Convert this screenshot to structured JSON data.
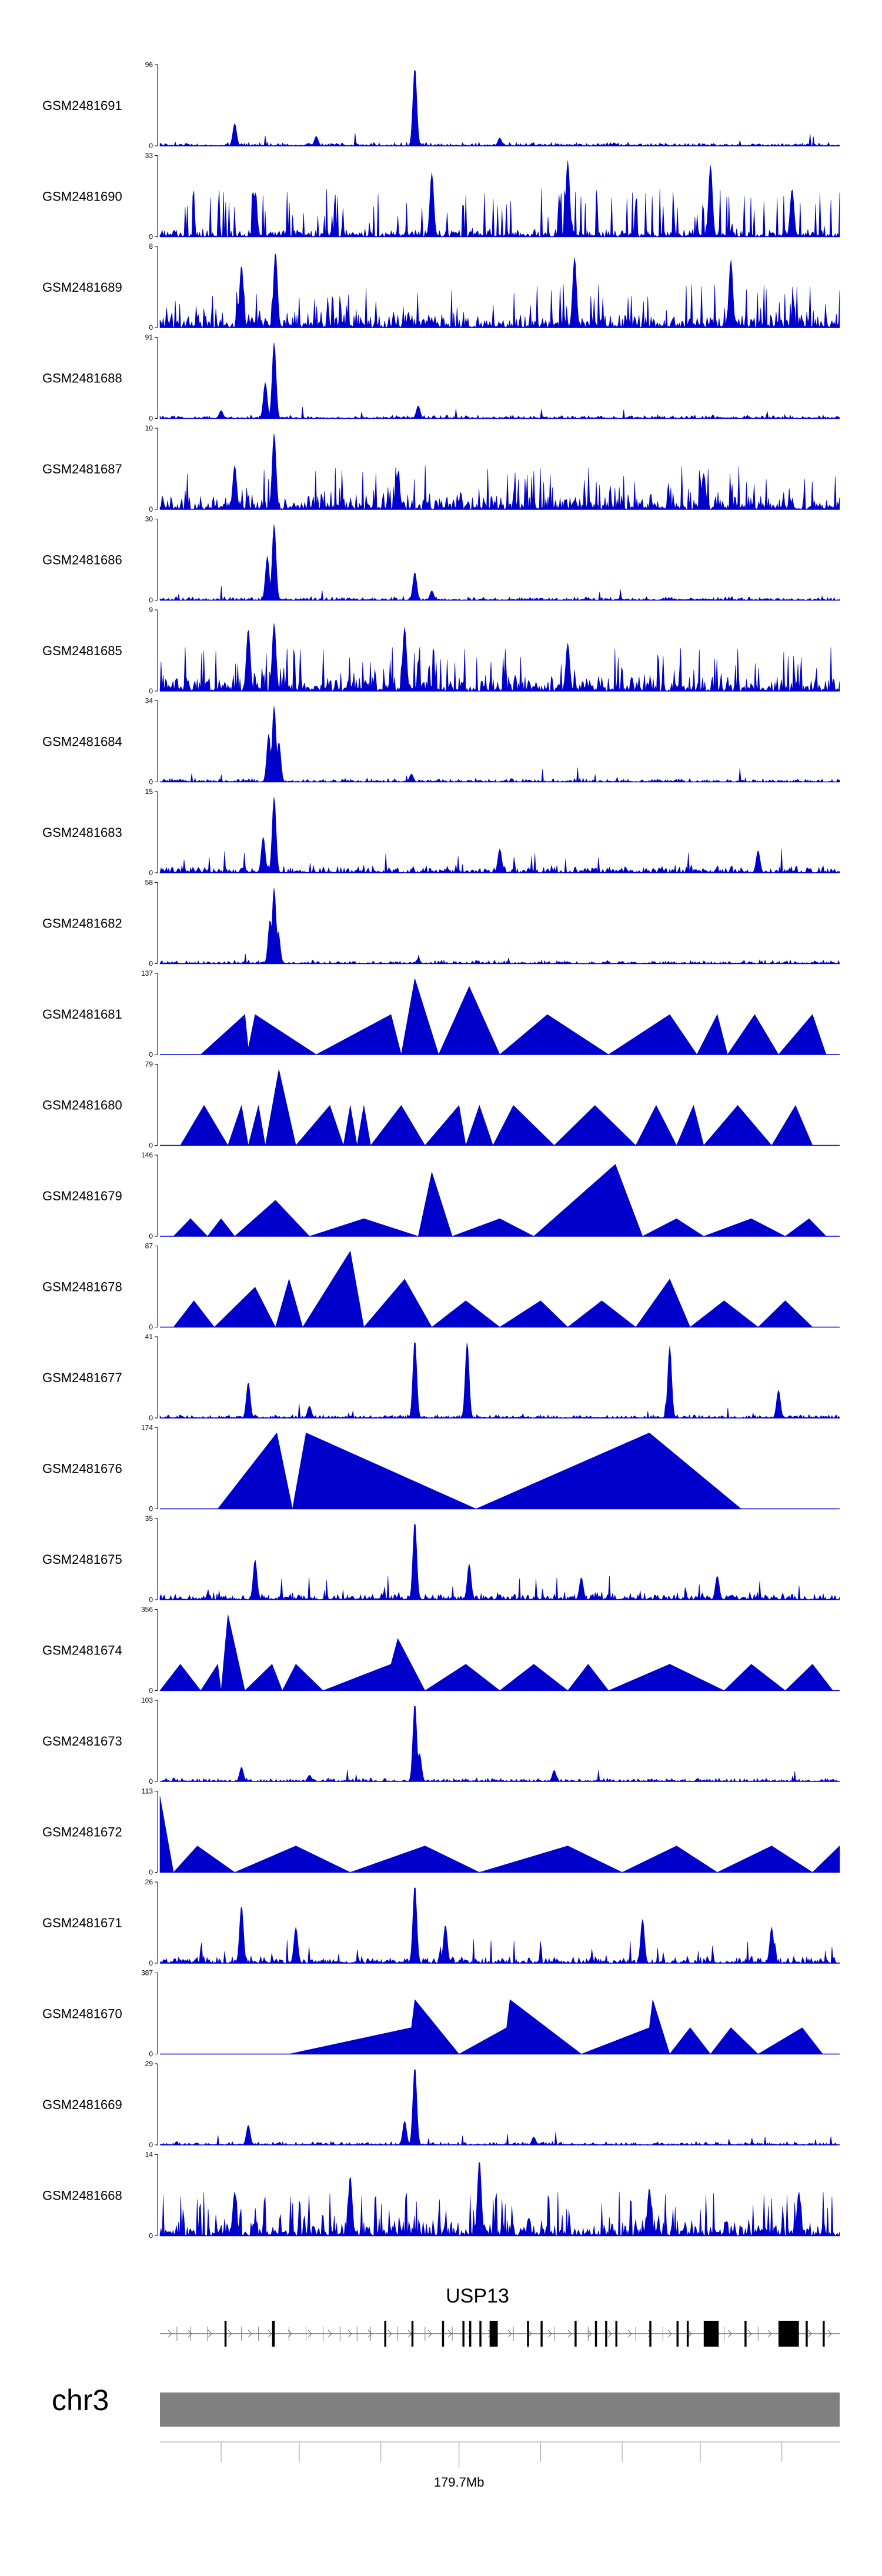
{
  "chart_data": {
    "type": "area",
    "title": "",
    "series_color": "#0000cc",
    "tracks": [
      {
        "name": "GSM2481691",
        "ymax": "96",
        "ymin": "0",
        "style": "sparse",
        "peaks": [
          [
            0.375,
            0.98
          ],
          [
            0.11,
            0.28
          ],
          [
            0.23,
            0.12
          ],
          [
            0.5,
            0.1
          ]
        ]
      },
      {
        "name": "GSM2481690",
        "ymax": "33",
        "ymin": "0",
        "style": "mixed",
        "peaks": [
          [
            0.14,
            0.55
          ],
          [
            0.6,
            0.95
          ],
          [
            0.81,
            0.9
          ],
          [
            0.4,
            0.8
          ],
          [
            0.93,
            0.6
          ]
        ]
      },
      {
        "name": "GSM2481689",
        "ymax": "8",
        "ymin": "0",
        "style": "dense",
        "peaks": [
          [
            0.17,
            0.95
          ],
          [
            0.12,
            0.78
          ],
          [
            0.61,
            0.88
          ],
          [
            0.84,
            0.85
          ]
        ]
      },
      {
        "name": "GSM2481688",
        "ymax": "91",
        "ymin": "0",
        "style": "sparse",
        "peaks": [
          [
            0.168,
            0.95
          ],
          [
            0.155,
            0.45
          ],
          [
            0.38,
            0.16
          ],
          [
            0.09,
            0.1
          ]
        ]
      },
      {
        "name": "GSM2481687",
        "ymax": "10",
        "ymin": "0",
        "style": "dense",
        "peaks": [
          [
            0.168,
            0.95
          ],
          [
            0.11,
            0.55
          ],
          [
            0.35,
            0.45
          ],
          [
            0.8,
            0.45
          ]
        ]
      },
      {
        "name": "GSM2481686",
        "ymax": "30",
        "ymin": "0",
        "style": "sparse",
        "peaks": [
          [
            0.168,
            0.95
          ],
          [
            0.158,
            0.55
          ],
          [
            0.375,
            0.35
          ],
          [
            0.4,
            0.12
          ]
        ]
      },
      {
        "name": "GSM2481685",
        "ymax": "9",
        "ymin": "0",
        "style": "dense",
        "peaks": [
          [
            0.168,
            0.85
          ],
          [
            0.13,
            0.78
          ],
          [
            0.36,
            0.8
          ],
          [
            0.6,
            0.6
          ]
        ]
      },
      {
        "name": "GSM2481684",
        "ymax": "34",
        "ymin": "0",
        "style": "sparse",
        "peaks": [
          [
            0.168,
            0.95
          ],
          [
            0.16,
            0.6
          ],
          [
            0.175,
            0.5
          ],
          [
            0.37,
            0.1
          ]
        ]
      },
      {
        "name": "GSM2481683",
        "ymax": "15",
        "ymin": "0",
        "style": "medium",
        "peaks": [
          [
            0.168,
            0.95
          ],
          [
            0.152,
            0.45
          ],
          [
            0.5,
            0.3
          ],
          [
            0.88,
            0.28
          ]
        ]
      },
      {
        "name": "GSM2481682",
        "ymax": "58",
        "ymin": "0",
        "style": "sparse",
        "peaks": [
          [
            0.168,
            0.95
          ],
          [
            0.162,
            0.55
          ],
          [
            0.174,
            0.4
          ],
          [
            0.38,
            0.06
          ]
        ]
      },
      {
        "name": "GSM2481681",
        "ymax": "137",
        "ymin": "0",
        "style": "triangles",
        "peaks": [
          [
            0.06,
            0.0
          ],
          [
            0.125,
            0.5
          ],
          [
            0.13,
            0.08
          ],
          [
            0.14,
            0.5
          ],
          [
            0.23,
            0.0
          ],
          [
            0.34,
            0.5
          ],
          [
            0.355,
            0.0
          ],
          [
            0.375,
            0.95
          ],
          [
            0.41,
            0.0
          ],
          [
            0.455,
            0.85
          ],
          [
            0.5,
            0.0
          ],
          [
            0.57,
            0.5
          ],
          [
            0.66,
            0.0
          ],
          [
            0.75,
            0.5
          ],
          [
            0.79,
            0.0
          ],
          [
            0.82,
            0.5
          ],
          [
            0.835,
            0.0
          ],
          [
            0.875,
            0.5
          ],
          [
            0.91,
            0.0
          ],
          [
            0.96,
            0.5
          ],
          [
            0.98,
            0.0
          ]
        ]
      },
      {
        "name": "GSM2481680",
        "ymax": "79",
        "ymin": "0",
        "style": "triangles",
        "peaks": [
          [
            0.03,
            0.0
          ],
          [
            0.065,
            0.5
          ],
          [
            0.1,
            0.0
          ],
          [
            0.12,
            0.5
          ],
          [
            0.13,
            0.0
          ],
          [
            0.145,
            0.5
          ],
          [
            0.155,
            0.0
          ],
          [
            0.175,
            0.95
          ],
          [
            0.2,
            0.0
          ],
          [
            0.25,
            0.5
          ],
          [
            0.27,
            0.0
          ],
          [
            0.28,
            0.5
          ],
          [
            0.29,
            0.0
          ],
          [
            0.3,
            0.5
          ],
          [
            0.31,
            0.0
          ],
          [
            0.355,
            0.5
          ],
          [
            0.39,
            0.0
          ],
          [
            0.44,
            0.5
          ],
          [
            0.45,
            0.0
          ],
          [
            0.47,
            0.5
          ],
          [
            0.49,
            0.0
          ],
          [
            0.52,
            0.5
          ],
          [
            0.58,
            0.0
          ],
          [
            0.64,
            0.5
          ],
          [
            0.7,
            0.0
          ],
          [
            0.73,
            0.5
          ],
          [
            0.76,
            0.0
          ],
          [
            0.785,
            0.5
          ],
          [
            0.8,
            0.0
          ],
          [
            0.85,
            0.5
          ],
          [
            0.9,
            0.0
          ],
          [
            0.935,
            0.5
          ],
          [
            0.96,
            0.0
          ]
        ]
      },
      {
        "name": "GSM2481679",
        "ymax": "146",
        "ymin": "0",
        "style": "triangles",
        "peaks": [
          [
            0.02,
            0.0
          ],
          [
            0.045,
            0.22
          ],
          [
            0.07,
            0.0
          ],
          [
            0.09,
            0.22
          ],
          [
            0.11,
            0.0
          ],
          [
            0.17,
            0.45
          ],
          [
            0.22,
            0.0
          ],
          [
            0.3,
            0.22
          ],
          [
            0.38,
            0.0
          ],
          [
            0.4,
            0.8
          ],
          [
            0.43,
            0.0
          ],
          [
            0.5,
            0.22
          ],
          [
            0.55,
            0.0
          ],
          [
            0.67,
            0.9
          ],
          [
            0.71,
            0.0
          ],
          [
            0.76,
            0.22
          ],
          [
            0.8,
            0.0
          ],
          [
            0.87,
            0.22
          ],
          [
            0.92,
            0.0
          ],
          [
            0.955,
            0.22
          ],
          [
            0.98,
            0.0
          ]
        ]
      },
      {
        "name": "GSM2481678",
        "ymax": "87",
        "ymin": "0",
        "style": "triangles",
        "peaks": [
          [
            0.02,
            0.0
          ],
          [
            0.05,
            0.33
          ],
          [
            0.08,
            0.0
          ],
          [
            0.14,
            0.5
          ],
          [
            0.17,
            0.0
          ],
          [
            0.19,
            0.6
          ],
          [
            0.21,
            0.0
          ],
          [
            0.28,
            0.95
          ],
          [
            0.3,
            0.0
          ],
          [
            0.36,
            0.6
          ],
          [
            0.4,
            0.0
          ],
          [
            0.45,
            0.33
          ],
          [
            0.5,
            0.0
          ],
          [
            0.56,
            0.33
          ],
          [
            0.6,
            0.0
          ],
          [
            0.65,
            0.33
          ],
          [
            0.7,
            0.0
          ],
          [
            0.75,
            0.6
          ],
          [
            0.78,
            0.0
          ],
          [
            0.83,
            0.33
          ],
          [
            0.88,
            0.0
          ],
          [
            0.92,
            0.33
          ],
          [
            0.96,
            0.0
          ]
        ]
      },
      {
        "name": "GSM2481677",
        "ymax": "41",
        "ymin": "0",
        "style": "sparse",
        "peaks": [
          [
            0.375,
            0.98
          ],
          [
            0.452,
            0.95
          ],
          [
            0.75,
            0.9
          ],
          [
            0.91,
            0.35
          ],
          [
            0.13,
            0.45
          ],
          [
            0.22,
            0.15
          ]
        ]
      },
      {
        "name": "GSM2481676",
        "ymax": "174",
        "ymin": "0",
        "style": "triangles",
        "peaks": [
          [
            0.085,
            0.0
          ],
          [
            0.172,
            0.95
          ],
          [
            0.195,
            0.0
          ],
          [
            0.215,
            0.95
          ],
          [
            0.465,
            0.0
          ],
          [
            0.72,
            0.95
          ],
          [
            0.855,
            0.0
          ]
        ]
      },
      {
        "name": "GSM2481675",
        "ymax": "35",
        "ymin": "0",
        "style": "medium",
        "peaks": [
          [
            0.375,
            0.98
          ],
          [
            0.455,
            0.45
          ],
          [
            0.14,
            0.5
          ],
          [
            0.62,
            0.28
          ],
          [
            0.82,
            0.3
          ]
        ]
      },
      {
        "name": "GSM2481674",
        "ymax": "356",
        "ymin": "0",
        "style": "triangles",
        "peaks": [
          [
            0.0,
            0.0
          ],
          [
            0.03,
            0.33
          ],
          [
            0.06,
            0.0
          ],
          [
            0.085,
            0.33
          ],
          [
            0.09,
            0.0
          ],
          [
            0.1,
            0.95
          ],
          [
            0.125,
            0.0
          ],
          [
            0.165,
            0.33
          ],
          [
            0.18,
            0.0
          ],
          [
            0.2,
            0.33
          ],
          [
            0.24,
            0.0
          ],
          [
            0.34,
            0.33
          ],
          [
            0.35,
            0.65
          ],
          [
            0.39,
            0.0
          ],
          [
            0.45,
            0.33
          ],
          [
            0.5,
            0.0
          ],
          [
            0.55,
            0.33
          ],
          [
            0.6,
            0.0
          ],
          [
            0.63,
            0.33
          ],
          [
            0.66,
            0.0
          ],
          [
            0.75,
            0.33
          ],
          [
            0.83,
            0.0
          ],
          [
            0.87,
            0.33
          ],
          [
            0.92,
            0.0
          ],
          [
            0.96,
            0.33
          ],
          [
            0.99,
            0.0
          ]
        ]
      },
      {
        "name": "GSM2481673",
        "ymax": "103",
        "ymin": "0",
        "style": "sparse",
        "peaks": [
          [
            0.375,
            0.98
          ],
          [
            0.382,
            0.35
          ],
          [
            0.12,
            0.18
          ],
          [
            0.58,
            0.14
          ],
          [
            0.22,
            0.08
          ]
        ]
      },
      {
        "name": "GSM2481672",
        "ymax": "113",
        "ymin": "0",
        "style": "triangles",
        "peaks": [
          [
            0.0,
            0.95
          ],
          [
            0.02,
            0.0
          ],
          [
            0.055,
            0.33
          ],
          [
            0.11,
            0.0
          ],
          [
            0.2,
            0.33
          ],
          [
            0.28,
            0.0
          ],
          [
            0.39,
            0.33
          ],
          [
            0.47,
            0.0
          ],
          [
            0.6,
            0.33
          ],
          [
            0.68,
            0.0
          ],
          [
            0.76,
            0.33
          ],
          [
            0.82,
            0.0
          ],
          [
            0.9,
            0.33
          ],
          [
            0.96,
            0.0
          ],
          [
            1.0,
            0.33
          ]
        ]
      },
      {
        "name": "GSM2481671",
        "ymax": "26",
        "ymin": "0",
        "style": "medium",
        "peaks": [
          [
            0.375,
            0.98
          ],
          [
            0.12,
            0.72
          ],
          [
            0.2,
            0.45
          ],
          [
            0.42,
            0.48
          ],
          [
            0.71,
            0.55
          ],
          [
            0.9,
            0.45
          ]
        ]
      },
      {
        "name": "GSM2481670",
        "ymax": "387",
        "ymin": "0",
        "style": "triangles",
        "peaks": [
          [
            0.19,
            0.0
          ],
          [
            0.37,
            0.33
          ],
          [
            0.375,
            0.68
          ],
          [
            0.44,
            0.0
          ],
          [
            0.51,
            0.33
          ],
          [
            0.515,
            0.68
          ],
          [
            0.62,
            0.0
          ],
          [
            0.72,
            0.33
          ],
          [
            0.725,
            0.68
          ],
          [
            0.75,
            0.0
          ],
          [
            0.78,
            0.33
          ],
          [
            0.81,
            0.0
          ],
          [
            0.84,
            0.33
          ],
          [
            0.88,
            0.0
          ],
          [
            0.945,
            0.33
          ],
          [
            0.975,
            0.0
          ]
        ]
      },
      {
        "name": "GSM2481669",
        "ymax": "29",
        "ymin": "0",
        "style": "sparse",
        "peaks": [
          [
            0.375,
            0.98
          ],
          [
            0.36,
            0.3
          ],
          [
            0.13,
            0.25
          ],
          [
            0.55,
            0.1
          ]
        ]
      },
      {
        "name": "GSM2481668",
        "ymax": "14",
        "ymin": "0",
        "style": "dense",
        "peaks": [
          [
            0.47,
            0.95
          ],
          [
            0.28,
            0.75
          ],
          [
            0.72,
            0.6
          ],
          [
            0.94,
            0.55
          ],
          [
            0.11,
            0.55
          ]
        ]
      }
    ],
    "gene": {
      "name": "USP13",
      "exons": [
        [
          0.095,
          0.003
        ],
        [
          0.165,
          0.004
        ],
        [
          0.33,
          0.003
        ],
        [
          0.37,
          0.003
        ],
        [
          0.415,
          0.003
        ],
        [
          0.445,
          0.003
        ],
        [
          0.455,
          0.003
        ],
        [
          0.47,
          0.003
        ],
        [
          0.485,
          0.012
        ],
        [
          0.54,
          0.003
        ],
        [
          0.56,
          0.003
        ],
        [
          0.61,
          0.003
        ],
        [
          0.64,
          0.003
        ],
        [
          0.655,
          0.003
        ],
        [
          0.67,
          0.003
        ],
        [
          0.72,
          0.003
        ],
        [
          0.76,
          0.003
        ],
        [
          0.775,
          0.003
        ],
        [
          0.8,
          0.022
        ],
        [
          0.86,
          0.003
        ],
        [
          0.91,
          0.03
        ],
        [
          0.95,
          0.003
        ],
        [
          0.975,
          0.003
        ]
      ],
      "smallmarks": [
        0.025,
        0.045,
        0.07,
        0.12,
        0.145,
        0.19,
        0.215,
        0.24,
        0.265,
        0.29,
        0.31,
        0.35,
        0.39,
        0.43,
        0.52,
        0.58,
        0.63,
        0.7,
        0.74,
        0.83,
        0.88,
        0.935
      ]
    },
    "chromosome": {
      "name": "chr3",
      "position_label": "179.7Mb",
      "position_fraction": 0.44,
      "ticks": [
        0.09,
        0.205,
        0.325,
        0.44,
        0.56,
        0.68,
        0.795,
        0.915
      ]
    }
  }
}
